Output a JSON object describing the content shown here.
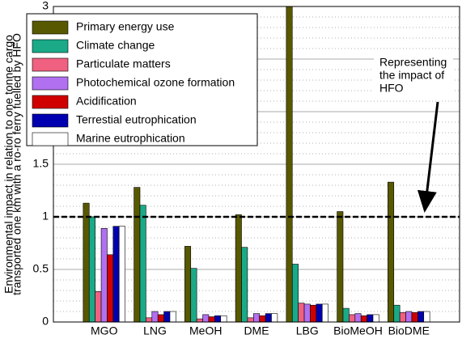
{
  "chart_data": {
    "type": "bar",
    "ylabel": [
      "Environmental impact in relation to one tonne cargo",
      "transported one km with a ro-ro ferry fuelled by HFO"
    ],
    "categories": [
      "MGO",
      "LNG",
      "MeOH",
      "DME",
      "LBG",
      "BioMeOH",
      "BioDME"
    ],
    "series": [
      {
        "name": "Primary energy use",
        "color": "#585800",
        "values": [
          1.13,
          1.28,
          0.72,
          1.02,
          3,
          1.05,
          1.33
        ]
      },
      {
        "name": "Climate change",
        "color": "#1aaa88",
        "values": [
          1.0,
          1.11,
          0.51,
          0.71,
          0.55,
          0.13,
          0.16
        ]
      },
      {
        "name": "Particulate matters",
        "color": "#f06080",
        "values": [
          0.29,
          0.04,
          0.03,
          0.04,
          0.18,
          0.07,
          0.09
        ]
      },
      {
        "name": "Photochemical ozone formation",
        "color": "#b070f0",
        "values": [
          0.89,
          0.1,
          0.07,
          0.08,
          0.17,
          0.08,
          0.1
        ]
      },
      {
        "name": "Acidification",
        "color": "#d00000",
        "values": [
          0.64,
          0.07,
          0.05,
          0.06,
          0.16,
          0.06,
          0.09
        ]
      },
      {
        "name": "Terrestial eutrophication",
        "color": "#0000b0",
        "values": [
          0.91,
          0.1,
          0.06,
          0.08,
          0.17,
          0.07,
          0.1
        ]
      },
      {
        "name": "Marine eutrophication",
        "color": "#ffffff",
        "values": [
          0.91,
          0.1,
          0.06,
          0.08,
          0.17,
          0.07,
          0.1
        ]
      }
    ],
    "ylim": [
      0,
      3
    ],
    "yticks": [
      0,
      0.5,
      1,
      1.5,
      2,
      2.5,
      3
    ],
    "grid": true,
    "minor_grid": true,
    "reference_line": 1,
    "annotation": [
      "Representing",
      "the impact of",
      "HFO"
    ],
    "legend": "upper left"
  }
}
